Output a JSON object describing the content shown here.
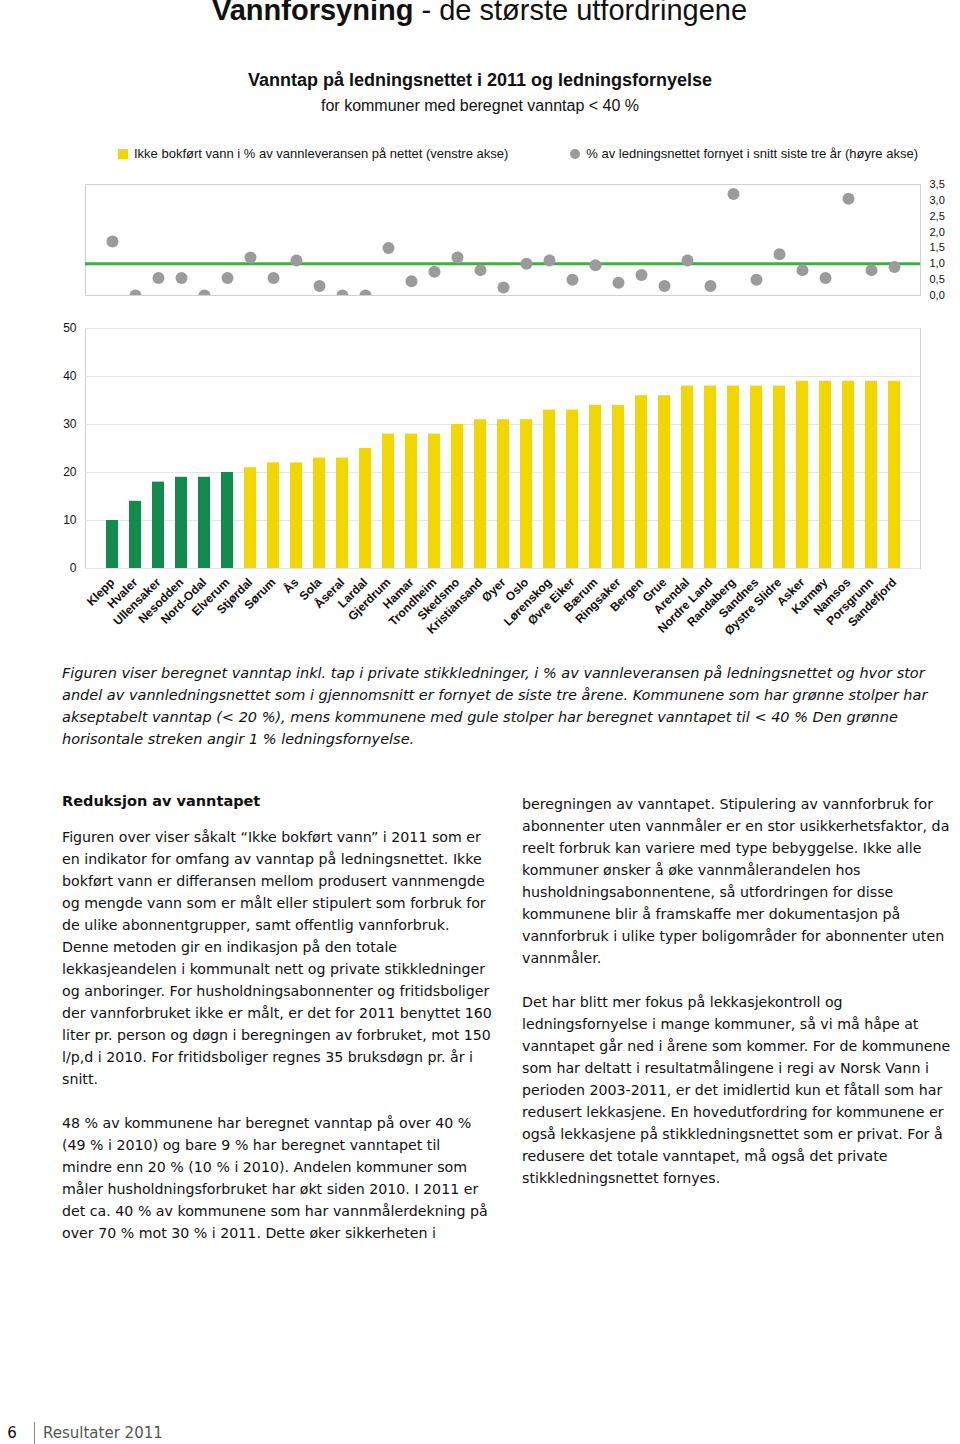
{
  "header": {
    "title_bold": "Vannforsyning",
    "title_rest": " - de største utfordringene"
  },
  "chart_data": {
    "type": "bar",
    "title": "Vanntap på ledningsnettet i 2011 og ledningsfornyelse",
    "subtitle": "for kommuner med beregnet vanntap < 40 %",
    "categories": [
      "Klepp",
      "Hvaler",
      "Ullensaker",
      "Nesodden",
      "Nord-Odal",
      "Elverum",
      "Stjørdal",
      "Sørum",
      "Ås",
      "Sola",
      "Åseral",
      "Lardal",
      "Gjerdrum",
      "Hamar",
      "Trondheim",
      "Skedsmo",
      "Kristiansand",
      "Øyer",
      "Oslo",
      "Lørenskog",
      "Øvre Eiker",
      "Bærum",
      "Ringsaker",
      "Bergen",
      "Grue",
      "Arendal",
      "Nordre Land",
      "Randaberg",
      "Sandnes",
      "Øystre Slidre",
      "Asker",
      "Karmøy",
      "Namsos",
      "Porsgrunn",
      "Sandefjord"
    ],
    "series": [
      {
        "name": "Ikke bokført vann i % av vannleveransen på nettet (venstre akse)",
        "type": "bar",
        "color": "#f2d600",
        "colors": [
          "#138a4e",
          "#138a4e",
          "#138a4e",
          "#138a4e",
          "#138a4e",
          "#138a4e",
          "#f2d600",
          "#f2d600",
          "#f2d600",
          "#f2d600",
          "#f2d600",
          "#f2d600",
          "#f2d600",
          "#f2d600",
          "#f2d600",
          "#f2d600",
          "#f2d600",
          "#f2d600",
          "#f2d600",
          "#f2d600",
          "#f2d600",
          "#f2d600",
          "#f2d600",
          "#f2d600",
          "#f2d600",
          "#f2d600",
          "#f2d600",
          "#f2d600",
          "#f2d600",
          "#f2d600",
          "#f2d600",
          "#f2d600",
          "#f2d600",
          "#f2d600",
          "#f2d600"
        ],
        "values": [
          10,
          14,
          18,
          19,
          19,
          20,
          21,
          22,
          22,
          23,
          23,
          25,
          28,
          28,
          28,
          30,
          31,
          31,
          31,
          33,
          33,
          34,
          34,
          36,
          36,
          38,
          38,
          38,
          38,
          38,
          39,
          39,
          39,
          39,
          39
        ]
      },
      {
        "name": "% av ledningsnettet fornyet i snitt siste tre år (høyre akse)",
        "type": "scatter",
        "axis": "y2",
        "color": "#9b9b9b",
        "marker": "circle",
        "values": [
          1.7,
          0.0,
          0.55,
          0.55,
          0.0,
          0.55,
          1.2,
          0.55,
          1.1,
          0.3,
          0.0,
          0.0,
          1.5,
          0.45,
          0.75,
          1.2,
          0.8,
          0.25,
          1.0,
          1.1,
          0.5,
          0.95,
          0.4,
          0.65,
          0.3,
          1.1,
          0.3,
          3.2,
          0.5,
          1.3,
          0.8,
          0.55,
          3.05,
          0.8,
          0.9
        ]
      }
    ],
    "ylim": [
      0,
      50
    ],
    "yticks": [
      0,
      10,
      20,
      30,
      40,
      50
    ],
    "y2lim": [
      0,
      3.5
    ],
    "y2ticks": [
      {
        "value": 0,
        "label": "0,0"
      },
      {
        "value": 0.5,
        "label": "0,5"
      },
      {
        "value": 1,
        "label": "1,0"
      },
      {
        "value": 1.5,
        "label": "1,5"
      },
      {
        "value": 2,
        "label": "2,0"
      },
      {
        "value": 2.5,
        "label": "2,5"
      },
      {
        "value": 3,
        "label": "3,0"
      },
      {
        "value": 3.5,
        "label": "3,5"
      }
    ],
    "y2_reference_line": {
      "value": 1,
      "color": "#3cb043"
    },
    "legend": "top"
  },
  "caption": "Figuren viser beregnet vanntap inkl. tap i private stikkledninger, i % av vannleveransen på ledningsnettet og hvor stor andel av vannledningsnettet som i gjennomsnitt er fornyet de siste tre årene. Kommunene som har grønne stolper har akseptabelt vanntap (< 20 %), mens kommunene med gule stolper har beregnet vanntapet til < 40 % Den grønne horisontale streken angir 1 % ledningsfornyelse.",
  "article": {
    "heading": "Reduksjon av vanntapet",
    "left_column": [
      "Figuren over viser såkalt “Ikke bokført vann” i 2011 som er en indikator for omfang av vanntap på ledningsnettet. Ikke bokført vann er differansen mellom produsert vannmengde og mengde vann som er målt eller stipulert som forbruk for de ulike abonnentgrupper, samt offentlig vannforbruk. Denne metoden gir en indikasjon på den totale lekkasjeandelen i kommunalt nett og private stikkledninger og anboringer. For husholdningsabonnenter og fritidsboliger der vannforbruket ikke er målt, er det for 2011 benyttet 160 liter pr. person og døgn i beregningen av forbruket, mot 150 l/p,d i 2010. For fritidsboliger regnes 35 bruksdøgn pr. år i snitt.",
      "48 % av kommunene har beregnet vanntap på over 40 % (49 % i 2010) og bare 9 % har beregnet vanntapet til mindre enn 20 % (10 % i 2010). Andelen kommuner som måler husholdningsforbruket har økt siden 2010. I 2011 er det ca. 40 % av kommunene som har vannmålerdekning på over 70 % mot 30 % i 2011. Dette øker sikkerheten i"
    ],
    "right_column": [
      "beregningen av vanntapet. Stipulering av vannforbruk for abonnenter uten vannmåler er en stor usikkerhetsfaktor, da reelt forbruk kan variere med type bebyggelse. Ikke alle kommuner ønsker å øke vannmålerandelen hos husholdningsabonnentene, så utfordringen for disse kommunene blir å framskaffe mer dokumentasjon på vannforbruk i ulike typer boligområder for abonnenter uten vannmåler.",
      "Det har blitt mer fokus på lekkasjekontroll og ledningsfornyelse i mange kommuner, så vi må håpe at vanntapet går ned i årene som kommer. For de kommunene som har deltatt i resultatmålingene i regi av Norsk Vann i perioden 2003-2011, er det imidlertid kun et fåtall som har redusert lekkasjene. En hovedutfordring for kommunene er også lekkasjene på stikkledningsnettet som er privat. For å redusere det totale vanntapet, må også det private stikkledningsnettet fornyes."
    ]
  },
  "footer": {
    "page": "6",
    "text": "Resultater 2011"
  }
}
